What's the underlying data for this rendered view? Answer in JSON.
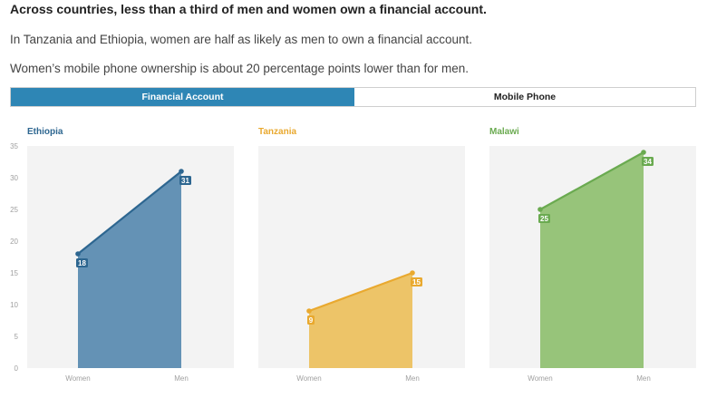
{
  "headline": "Across countries, less than a third of men and women own a financial account.",
  "subtitle1": "In Tanzania and Ethiopia, women are half as likely as men to own a financial account.",
  "subtitle2": "Women’s mobile phone ownership is about 20 percentage points lower than for men.",
  "tabs": {
    "active": "Financial Account",
    "inactive": "Mobile Phone"
  },
  "chart_data": {
    "type": "area",
    "categories": [
      "Women",
      "Men"
    ],
    "ylim": [
      0,
      35
    ],
    "yticks": [
      0,
      5,
      10,
      15,
      20,
      25,
      30,
      35
    ],
    "grid": false,
    "panels": [
      {
        "title": "Ethiopia",
        "color": "#2d6690",
        "fill": "#6492b5",
        "values": [
          18,
          31
        ]
      },
      {
        "title": "Tanzania",
        "color": "#e9a92f",
        "fill": "#edc468",
        "values": [
          9,
          15
        ]
      },
      {
        "title": "Malawi",
        "color": "#6aaa50",
        "fill": "#97c47a",
        "values": [
          25,
          34
        ]
      }
    ]
  }
}
